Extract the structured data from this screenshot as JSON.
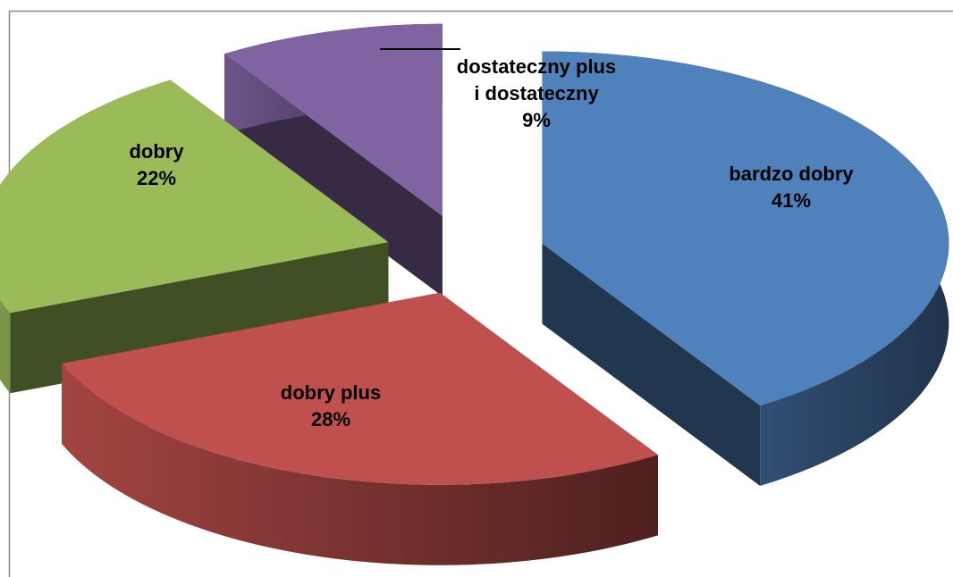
{
  "chart_data": {
    "type": "pie",
    "categories": [
      "bardzo dobry",
      "dobry plus",
      "dobry",
      "dostateczny plus i dostateczny"
    ],
    "values": [
      41,
      28,
      22,
      9
    ],
    "value_labels": [
      "41%",
      "28%",
      "22%",
      "9%"
    ],
    "colors": [
      "#4f81bd",
      "#c0504d",
      "#9bbb59",
      "#8064a2"
    ],
    "exploded": true,
    "three_d": true
  }
}
